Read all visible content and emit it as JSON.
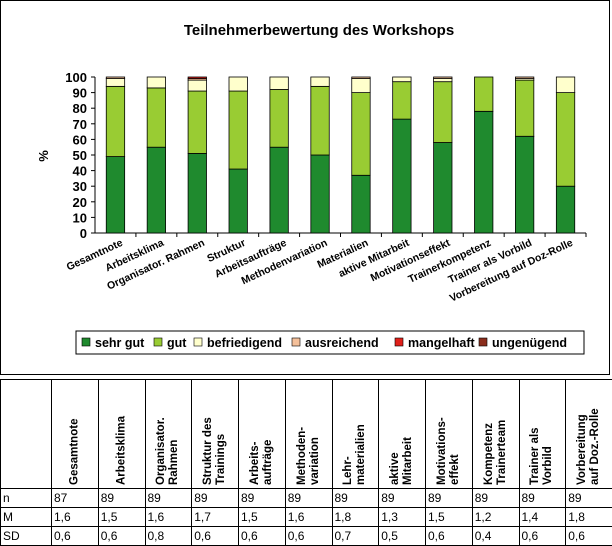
{
  "chart_data": {
    "type": "bar",
    "stacked": true,
    "title": "Teilnehmerbewertung des Workshops",
    "ylabel": "%",
    "xlabel": "",
    "ylim": [
      0,
      100
    ],
    "yticks": [
      0,
      10,
      20,
      30,
      40,
      50,
      60,
      70,
      80,
      90,
      100
    ],
    "grid": false,
    "legend_position": "bottom",
    "categories": [
      "Gesamtnote",
      "Arbeitsklima",
      "Organisator. Rahmen",
      "Struktur",
      "Arbeitsaufträge",
      "Methodenvariation",
      "Materialien",
      "aktive Mitarbeit",
      "Motivationseffekt",
      "Trainerkompetenz",
      "Trainer als Vorbild",
      "Vorbereitung auf Doz-Rolle"
    ],
    "series": [
      {
        "name": "sehr gut",
        "color": "#1f8a2e",
        "values": [
          49,
          55,
          51,
          41,
          55,
          50,
          37,
          73,
          58,
          78,
          62,
          30
        ]
      },
      {
        "name": "gut",
        "color": "#99cc33",
        "values": [
          45,
          38,
          40,
          50,
          37,
          44,
          53,
          24,
          39,
          22,
          36,
          60
        ]
      },
      {
        "name": "befriedigend",
        "color": "#ffffcc",
        "values": [
          5,
          7,
          7,
          9,
          8,
          6,
          9,
          3,
          2,
          0,
          1,
          10
        ]
      },
      {
        "name": "ausreichend",
        "color": "#f4c09a",
        "values": [
          1,
          0,
          1,
          0,
          0,
          0,
          1,
          0,
          1,
          0,
          1,
          0
        ]
      },
      {
        "name": "mangelhaft",
        "color": "#e0201a",
        "values": [
          0,
          0,
          1,
          0,
          0,
          0,
          0,
          0,
          0,
          0,
          0,
          0
        ]
      },
      {
        "name": "ungenügend",
        "color": "#8a2d1c",
        "values": [
          0,
          0,
          0,
          0,
          0,
          0,
          0,
          0,
          0,
          0,
          0,
          0
        ]
      }
    ]
  },
  "table": {
    "headers": [
      [
        "Gesamtnote"
      ],
      [
        "Arbeitsklima"
      ],
      [
        "Organisator.",
        "Rahmen"
      ],
      [
        "Struktur des",
        "Trainings"
      ],
      [
        "Arbeits-",
        "aufträge"
      ],
      [
        "Methoden-",
        "variation"
      ],
      [
        "Lehr-",
        "materialien"
      ],
      [
        "aktive",
        "Mitarbeit"
      ],
      [
        "Motivations-",
        "effekt"
      ],
      [
        "Kompetenz",
        "Trainerteam"
      ],
      [
        "Trainer als",
        "Vorbild"
      ],
      [
        "Vorbereitung",
        "auf Doz.-Rolle"
      ]
    ],
    "rows": [
      {
        "label": "n",
        "values": [
          "87",
          "89",
          "89",
          "89",
          "89",
          "89",
          "89",
          "89",
          "89",
          "89",
          "89",
          "89"
        ]
      },
      {
        "label": "M",
        "values": [
          "1,6",
          "1,5",
          "1,6",
          "1,7",
          "1,5",
          "1,6",
          "1,8",
          "1,3",
          "1,5",
          "1,2",
          "1,4",
          "1,8"
        ]
      },
      {
        "label": "SD",
        "values": [
          "0,6",
          "0,6",
          "0,8",
          "0,6",
          "0,6",
          "0,6",
          "0,7",
          "0,5",
          "0,6",
          "0,4",
          "0,6",
          "0,6"
        ]
      }
    ]
  }
}
